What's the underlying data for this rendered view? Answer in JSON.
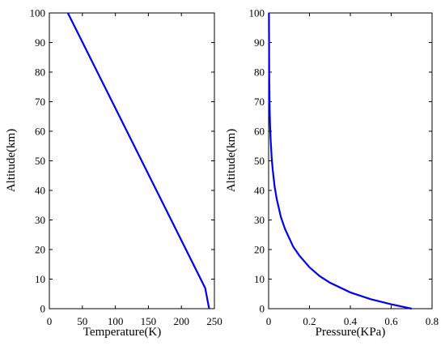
{
  "chart_data": [
    {
      "type": "line",
      "title": "",
      "xlabel": "Temperature(K)",
      "ylabel": "Altitude(km)",
      "xlim": [
        0,
        250
      ],
      "ylim": [
        0,
        100
      ],
      "xticks": [
        "0",
        "50",
        "100",
        "150",
        "200",
        "250"
      ],
      "yticks": [
        "0",
        "10",
        "20",
        "30",
        "40",
        "50",
        "60",
        "70",
        "80",
        "90",
        "100"
      ],
      "grid": false,
      "series": [
        {
          "color": "#0000ee",
          "x": [
            242,
            236,
            28
          ],
          "y": [
            0,
            7,
            100
          ]
        }
      ]
    },
    {
      "type": "line",
      "title": "",
      "xlabel": "Pressure(KPa)",
      "ylabel": "Altitude(km)",
      "xlim": [
        0,
        0.8
      ],
      "ylim": [
        0,
        100
      ],
      "xticks": [
        "0",
        "0.2",
        "0.4",
        "0.6",
        "0.8"
      ],
      "yticks": [
        "0",
        "10",
        "20",
        "30",
        "40",
        "50",
        "60",
        "70",
        "80",
        "90",
        "100"
      ],
      "grid": false,
      "series": [
        {
          "color": "#0000ee",
          "x": [
            0.7,
            0.6,
            0.5,
            0.4,
            0.3,
            0.25,
            0.2,
            0.15,
            0.12,
            0.1,
            0.08,
            0.06,
            0.05,
            0.04,
            0.03,
            0.02,
            0.015,
            0.01,
            0.007,
            0.005,
            0.003,
            0.0015
          ],
          "y": [
            0,
            1.5,
            3.2,
            5.5,
            8.8,
            11,
            14,
            18,
            21,
            24,
            27,
            31,
            34,
            37,
            41,
            47,
            51,
            57,
            62,
            68,
            78,
            100
          ]
        }
      ]
    }
  ]
}
